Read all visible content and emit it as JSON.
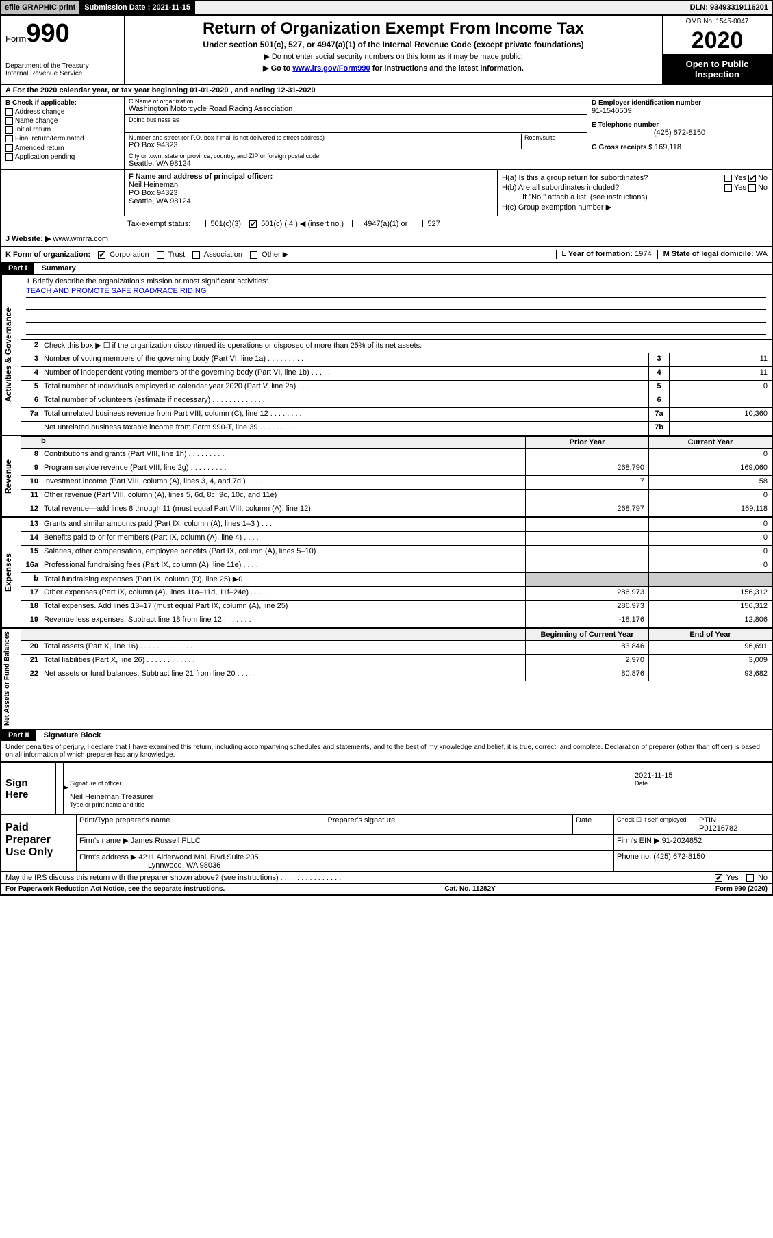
{
  "topbar": {
    "efile": "efile GRAPHIC print",
    "submission_label": "Submission Date :",
    "submission_date": "2021-11-15",
    "dln": "DLN: 93493319116201"
  },
  "header": {
    "form_prefix": "Form",
    "form_number": "990",
    "dept": "Department of the Treasury\nInternal Revenue Service",
    "title": "Return of Organization Exempt From Income Tax",
    "subtitle": "Under section 501(c), 527, or 4947(a)(1) of the Internal Revenue Code (except private foundations)",
    "note1": "▶ Do not enter social security numbers on this form as it may be made public.",
    "note2_prefix": "▶ Go to ",
    "note2_link": "www.irs.gov/Form990",
    "note2_suffix": " for instructions and the latest information.",
    "omb": "OMB No. 1545-0047",
    "year": "2020",
    "inspect": "Open to Public Inspection"
  },
  "row_a": "A   For the 2020 calendar year, or tax year beginning 01-01-2020    , and ending 12-31-2020",
  "section_b": {
    "header": "B Check if applicable:",
    "items": [
      "Address change",
      "Name change",
      "Initial return",
      "Final return/terminated",
      "Amended return",
      "Application pending"
    ]
  },
  "section_c": {
    "name_label": "C Name of organization",
    "name": "Washington Motorcycle Road Racing Association",
    "dba_label": "Doing business as",
    "addr_label": "Number and street (or P.O. box if mail is not delivered to street address)",
    "room_label": "Room/suite",
    "addr": "PO Box 94323",
    "city_label": "City or town, state or province, country, and ZIP or foreign postal code",
    "city": "Seattle, WA  98124"
  },
  "section_d": {
    "ein_label": "D Employer identification number",
    "ein": "91-1540509",
    "phone_label": "E Telephone number",
    "phone": "(425) 672-8150",
    "gross_label": "G Gross receipts $",
    "gross": "169,118"
  },
  "section_f": {
    "label": "F Name and address of principal officer:",
    "name": "Neil Heineman",
    "addr1": "PO Box 94323",
    "addr2": "Seattle, WA  98124"
  },
  "section_h": {
    "ha": "H(a)  Is this a group return for subordinates?",
    "hb": "H(b)  Are all subordinates included?",
    "hb_note": "If \"No,\" attach a list. (see instructions)",
    "hc": "H(c)  Group exemption number ▶",
    "yes": "Yes",
    "no": "No"
  },
  "tax_status": {
    "label": "Tax-exempt status:",
    "opt1": "501(c)(3)",
    "opt2": "501(c) ( 4 ) ◀ (insert no.)",
    "opt3": "4947(a)(1) or",
    "opt4": "527"
  },
  "row_j": {
    "label": "J   Website: ▶",
    "value": "www.wmrra.com"
  },
  "row_k": {
    "label": "K Form of organization:",
    "opts": [
      "Corporation",
      "Trust",
      "Association",
      "Other ▶"
    ],
    "l_label": "L Year of formation:",
    "l_val": "1974",
    "m_label": "M State of legal domicile:",
    "m_val": "WA"
  },
  "part1": {
    "hdr": "Part I",
    "title": "Summary",
    "q1": "1  Briefly describe the organization's mission or most significant activities:",
    "mission": "TEACH AND PROMOTE SAFE ROAD/RACE RIDING",
    "q2": "Check this box ▶ ☐  if the organization discontinued its operations or disposed of more than 25% of its net assets.",
    "lines": [
      {
        "n": "3",
        "d": "Number of voting members of the governing body (Part VI, line 1a)  .   .   .   .   .   .   .   .   .",
        "b": "3",
        "v": "11"
      },
      {
        "n": "4",
        "d": "Number of independent voting members of the governing body (Part VI, line 1b)  .   .   .   .   .",
        "b": "4",
        "v": "11"
      },
      {
        "n": "5",
        "d": "Total number of individuals employed in calendar year 2020 (Part V, line 2a)  .   .   .   .   .   .",
        "b": "5",
        "v": "0"
      },
      {
        "n": "6",
        "d": "Total number of volunteers (estimate if necessary)  .   .   .   .   .   .   .   .   .   .   .   .   .",
        "b": "6",
        "v": ""
      },
      {
        "n": "7a",
        "d": "Total unrelated business revenue from Part VIII, column (C), line 12  .   .   .   .   .   .   .   .",
        "b": "7a",
        "v": "10,360"
      },
      {
        "n": "",
        "d": "Net unrelated business taxable income from Form 990-T, line 39  .   .   .   .   .   .   .   .   .",
        "b": "7b",
        "v": ""
      }
    ],
    "side_gov": "Activities & Governance",
    "side_rev": "Revenue",
    "side_exp": "Expenses",
    "side_net": "Net Assets or Fund Balances",
    "hdr_prior": "Prior Year",
    "hdr_curr": "Current Year",
    "hdr_begin": "Beginning of Current Year",
    "hdr_end": "End of Year",
    "revenue": [
      {
        "n": "8",
        "d": "Contributions and grants (Part VIII, line 1h)  .   .   .   .   .   .   .   .   .",
        "p": "",
        "c": "0"
      },
      {
        "n": "9",
        "d": "Program service revenue (Part VIII, line 2g)  .   .   .   .   .   .   .   .   .",
        "p": "268,790",
        "c": "169,060"
      },
      {
        "n": "10",
        "d": "Investment income (Part VIII, column (A), lines 3, 4, and 7d )  .   .   .   .",
        "p": "7",
        "c": "58"
      },
      {
        "n": "11",
        "d": "Other revenue (Part VIII, column (A), lines 5, 6d, 8c, 9c, 10c, and 11e)",
        "p": "",
        "c": "0"
      },
      {
        "n": "12",
        "d": "Total revenue—add lines 8 through 11 (must equal Part VIII, column (A), line 12)",
        "p": "268,797",
        "c": "169,118"
      }
    ],
    "expenses": [
      {
        "n": "13",
        "d": "Grants and similar amounts paid (Part IX, column (A), lines 1–3 )  .   .   .",
        "p": "",
        "c": "0"
      },
      {
        "n": "14",
        "d": "Benefits paid to or for members (Part IX, column (A), line 4)  .   .   .   .",
        "p": "",
        "c": "0"
      },
      {
        "n": "15",
        "d": "Salaries, other compensation, employee benefits (Part IX, column (A), lines 5–10)",
        "p": "",
        "c": "0"
      },
      {
        "n": "16a",
        "d": "Professional fundraising fees (Part IX, column (A), line 11e)  .   .   .   .",
        "p": "",
        "c": "0"
      },
      {
        "n": "b",
        "d": "Total fundraising expenses (Part IX, column (D), line 25) ▶0",
        "p": "—",
        "c": "—"
      },
      {
        "n": "17",
        "d": "Other expenses (Part IX, column (A), lines 11a–11d, 11f–24e)  .   .   .   .",
        "p": "286,973",
        "c": "156,312"
      },
      {
        "n": "18",
        "d": "Total expenses. Add lines 13–17 (must equal Part IX, column (A), line 25)",
        "p": "286,973",
        "c": "156,312"
      },
      {
        "n": "19",
        "d": "Revenue less expenses. Subtract line 18 from line 12  .   .   .   .   .   .   .",
        "p": "-18,176",
        "c": "12,806"
      }
    ],
    "netassets": [
      {
        "n": "20",
        "d": "Total assets (Part X, line 16)  .   .   .   .   .   .   .   .   .   .   .   .   .",
        "p": "83,846",
        "c": "96,691"
      },
      {
        "n": "21",
        "d": "Total liabilities (Part X, line 26)  .   .   .   .   .   .   .   .   .   .   .   .",
        "p": "2,970",
        "c": "3,009"
      },
      {
        "n": "22",
        "d": "Net assets or fund balances. Subtract line 21 from line 20  .   .   .   .   .",
        "p": "80,876",
        "c": "93,682"
      }
    ]
  },
  "part2": {
    "hdr": "Part II",
    "title": "Signature Block",
    "declaration": "Under penalties of perjury, I declare that I have examined this return, including accompanying schedules and statements, and to the best of my knowledge and belief, it is true, correct, and complete. Declaration of preparer (other than officer) is based on all information of which preparer has any knowledge.",
    "sign_here": "Sign Here",
    "sig_officer_label": "Signature of officer",
    "date_label": "Date",
    "sig_date": "2021-11-15",
    "officer_name": "Neil Heineman  Treasurer",
    "type_label": "Type or print name and title",
    "paid_prep": "Paid Preparer Use Only",
    "prep_name_label": "Print/Type preparer's name",
    "prep_sig_label": "Preparer's signature",
    "prep_date_label": "Date",
    "check_self": "Check ☐ if self-employed",
    "ptin_label": "PTIN",
    "ptin": "P01216782",
    "firm_name_label": "Firm's name     ▶",
    "firm_name": "James Russell PLLC",
    "firm_ein_label": "Firm's EIN ▶",
    "firm_ein": "91-2024852",
    "firm_addr_label": "Firm's address ▶",
    "firm_addr1": "4211 Alderwood Mall Blvd Suite 205",
    "firm_addr2": "Lynnwood, WA  98036",
    "phone_label": "Phone no.",
    "phone": "(425) 672-8150",
    "discuss": "May the IRS discuss this return with the preparer shown above? (see instructions)  .   .   .   .   .   .   .   .   .   .   .   .   .   .   .",
    "yes": "Yes",
    "no": "No"
  },
  "footer": {
    "paperwork": "For Paperwork Reduction Act Notice, see the separate instructions.",
    "cat": "Cat. No. 11282Y",
    "form": "Form 990 (2020)"
  }
}
